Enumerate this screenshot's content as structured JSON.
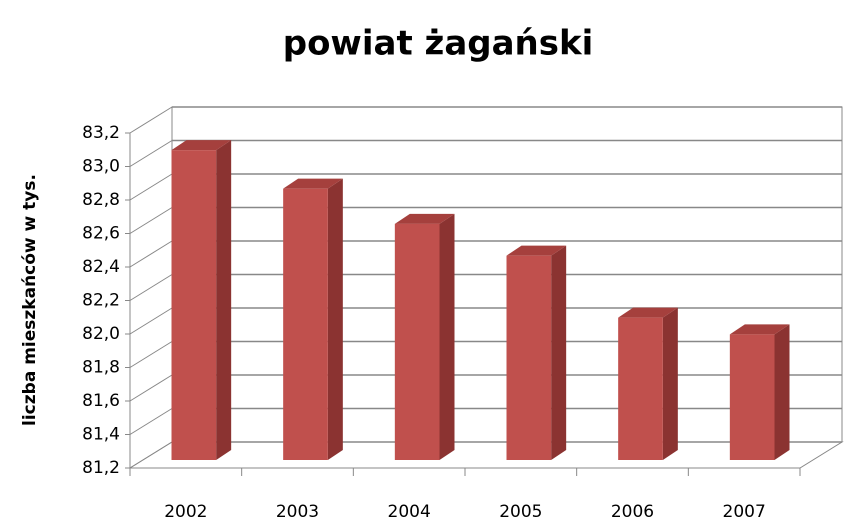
{
  "chart_data": {
    "type": "bar3d",
    "title": "powiat żagański",
    "y_label": "liczba mieszkańców w tys.",
    "categories": [
      "2002",
      "2003",
      "2004",
      "2005",
      "2006",
      "2007"
    ],
    "values": [
      83.05,
      82.82,
      82.61,
      82.42,
      82.05,
      81.95
    ],
    "color": "#c0504d",
    "ylim": [
      81.2,
      83.2
    ],
    "yticks": [
      {
        "value": 81.2,
        "label": "81,2"
      },
      {
        "value": 81.4,
        "label": "81,4"
      },
      {
        "value": 81.6,
        "label": "81,6"
      },
      {
        "value": 81.8,
        "label": "81,8"
      },
      {
        "value": 82.0,
        "label": "82,0"
      },
      {
        "value": 82.2,
        "label": "82,2"
      },
      {
        "value": 82.4,
        "label": "82,4"
      },
      {
        "value": 82.6,
        "label": "82,6"
      },
      {
        "value": 82.8,
        "label": "82,8"
      },
      {
        "value": 83.0,
        "label": "83,0"
      },
      {
        "value": 83.2,
        "label": "83,2"
      }
    ],
    "grid": true
  }
}
